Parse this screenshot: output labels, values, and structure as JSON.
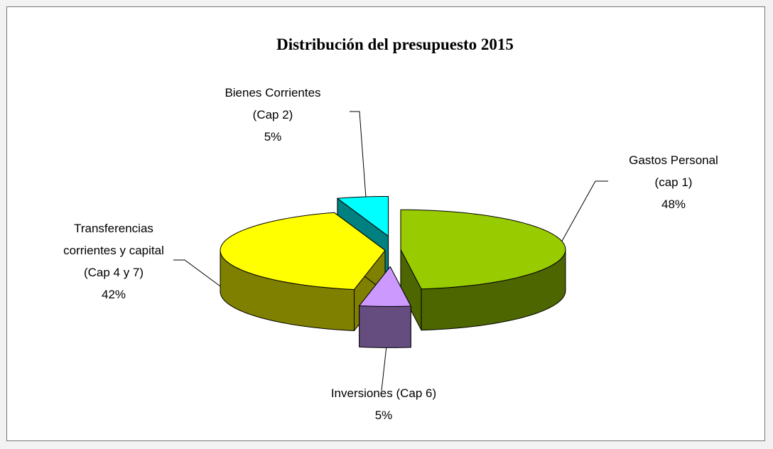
{
  "chart_data": {
    "type": "pie",
    "title": "Distribución del presupuesto 2015",
    "categories": [
      "Gastos Personal (cap 1)",
      "Inversiones (Cap 6)",
      "Transferencias corrientes y capital (Cap 4 y 7)",
      "Bienes Corrientes (Cap 2)"
    ],
    "values": [
      48,
      5,
      42,
      5
    ],
    "value_labels": [
      "48%",
      "5%",
      "42%",
      "5%"
    ],
    "colors": [
      "#99cc00",
      "#cc99ff",
      "#ffff00",
      "#00ffff"
    ]
  }
}
